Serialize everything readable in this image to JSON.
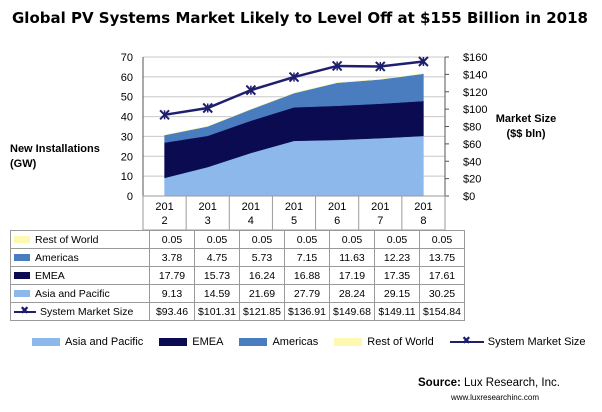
{
  "title": "Global PV Systems Market Likely to Level Off at $155 Billion in 2018",
  "source_label": "Source:",
  "source_name": "Lux Research, Inc.",
  "source_url": "www.luxresearchinc.com",
  "chart_data": {
    "type": "area",
    "stacked": true,
    "title": "Global PV Systems Market Likely to Level Off at $155 Billion in 2018",
    "categories": [
      "2012",
      "2013",
      "2014",
      "2015",
      "2016",
      "2017",
      "2018"
    ],
    "category_labels": [
      {
        "top": "201",
        "bottom": "2"
      },
      {
        "top": "201",
        "bottom": "3"
      },
      {
        "top": "201",
        "bottom": "4"
      },
      {
        "top": "201",
        "bottom": "5"
      },
      {
        "top": "201",
        "bottom": "6"
      },
      {
        "top": "201",
        "bottom": "7"
      },
      {
        "top": "201",
        "bottom": "8"
      }
    ],
    "ylabel_left": "New Installations (GW)",
    "ylabel_right": "Market Size ($$ bln)",
    "ylim_left": [
      0,
      70
    ],
    "ylim_right": [
      0,
      160
    ],
    "yticks_left": [
      "0",
      "10",
      "20",
      "30",
      "40",
      "50",
      "60",
      "70"
    ],
    "yticks_right": [
      "$0",
      "$20",
      "$40",
      "$60",
      "$80",
      "$100",
      "$120",
      "$140",
      "$160"
    ],
    "grid": true,
    "legend_position": "bottom",
    "series": [
      {
        "name": "Rest of World",
        "kind": "area",
        "color": "#fff8b0",
        "values": [
          0.05,
          0.05,
          0.05,
          0.05,
          0.05,
          0.05,
          0.05
        ],
        "labels": [
          "0.05",
          "0.05",
          "0.05",
          "0.05",
          "0.05",
          "0.05",
          "0.05"
        ]
      },
      {
        "name": "Americas",
        "kind": "area",
        "color": "#4a7cc0",
        "values": [
          3.78,
          4.75,
          5.73,
          7.15,
          11.63,
          12.23,
          13.75
        ],
        "labels": [
          "3.78",
          "4.75",
          "5.73",
          "7.15",
          "11.63",
          "12.23",
          "13.75"
        ]
      },
      {
        "name": "EMEA",
        "kind": "area",
        "color": "#0b0b52",
        "values": [
          17.79,
          15.73,
          16.24,
          16.88,
          17.19,
          17.35,
          17.61
        ],
        "labels": [
          "17.79",
          "15.73",
          "16.24",
          "16.88",
          "17.19",
          "17.35",
          "17.61"
        ]
      },
      {
        "name": "Asia and Pacific",
        "kind": "area",
        "color": "#8db8ec",
        "values": [
          9.13,
          14.59,
          21.69,
          27.79,
          28.24,
          29.15,
          30.25
        ],
        "labels": [
          "9.13",
          "14.59",
          "21.69",
          "27.79",
          "28.24",
          "29.15",
          "30.25"
        ]
      },
      {
        "name": "System Market Size",
        "kind": "line",
        "axis": "right",
        "color": "#1f1f6e",
        "values": [
          93.46,
          101.31,
          121.85,
          136.91,
          149.68,
          149.11,
          154.84
        ],
        "labels": [
          "$93.46",
          "$101.31",
          "$121.85",
          "$136.91",
          "$149.68",
          "$149.11",
          "$154.84"
        ]
      }
    ],
    "legend": [
      "Asia and Pacific",
      "EMEA",
      "Americas",
      "Rest of World",
      "System Market Size"
    ]
  }
}
